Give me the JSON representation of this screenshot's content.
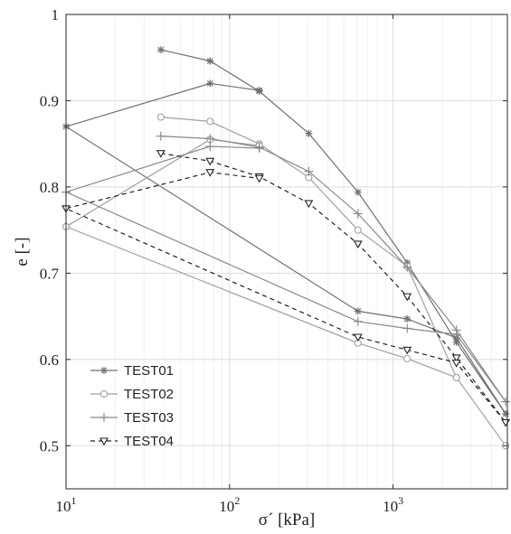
{
  "chart_data": {
    "type": "line",
    "xscale": "log",
    "xlim": [
      10,
      5000
    ],
    "ylim": [
      0.45,
      1
    ],
    "xlabel": "σ´ [kPa]",
    "ylabel": "e [-]",
    "grid": true,
    "legend_position": "bottom-left",
    "x_ticks": [
      {
        "value": 10,
        "base": "10",
        "exp": "1"
      },
      {
        "value": 100,
        "base": "10",
        "exp": "2"
      },
      {
        "value": 1000,
        "base": "10",
        "exp": "3"
      }
    ],
    "y_ticks": [
      {
        "value": 0.5,
        "label": "0.5"
      },
      {
        "value": 0.6,
        "label": "0.6"
      },
      {
        "value": 0.7,
        "label": "0.7"
      },
      {
        "value": 0.8,
        "label": "0.8"
      },
      {
        "value": 0.9,
        "label": "0.9"
      },
      {
        "value": 1,
        "label": "1"
      }
    ],
    "series": [
      {
        "name": "TEST01",
        "marker": "asterisk",
        "color": "#707070",
        "dash": "",
        "x": [
          38,
          76,
          152,
          305,
          610,
          1220,
          2440,
          4880,
          2440,
          1220,
          610,
          10,
          76,
          152
        ],
        "y": [
          0.959,
          0.946,
          0.911,
          0.862,
          0.794,
          0.712,
          0.62,
          0.537,
          0.625,
          0.647,
          0.656,
          0.87,
          0.92,
          0.912
        ]
      },
      {
        "name": "TEST02",
        "marker": "circle",
        "color": "#a0a0a0",
        "dash": "",
        "x": [
          38,
          76,
          152,
          305,
          610,
          1220,
          2440,
          4880,
          2440,
          1220,
          610,
          10,
          76,
          152
        ],
        "y": [
          0.881,
          0.876,
          0.85,
          0.811,
          0.75,
          0.708,
          0.579,
          0.5,
          0.579,
          0.601,
          0.619,
          0.754,
          0.855,
          0.848
        ]
      },
      {
        "name": "TEST03",
        "marker": "plus",
        "color": "#8a8a8a",
        "dash": "",
        "x": [
          38,
          76,
          152,
          305,
          610,
          1220,
          2440,
          4880,
          2440,
          1220,
          610,
          10,
          76,
          152
        ],
        "y": [
          0.859,
          0.856,
          0.846,
          0.818,
          0.769,
          0.707,
          0.634,
          0.551,
          0.629,
          0.636,
          0.644,
          0.794,
          0.847,
          0.845
        ]
      },
      {
        "name": "TEST04",
        "marker": "triangle-down",
        "color": "#222222",
        "dash": "5,4",
        "x": [
          38,
          76,
          152,
          305,
          610,
          1220,
          2440,
          4880,
          2440,
          1220,
          610,
          10,
          76,
          152
        ],
        "y": [
          0.839,
          0.83,
          0.812,
          0.781,
          0.734,
          0.673,
          0.602,
          0.527,
          0.596,
          0.611,
          0.626,
          0.775,
          0.817,
          0.81
        ]
      }
    ]
  }
}
